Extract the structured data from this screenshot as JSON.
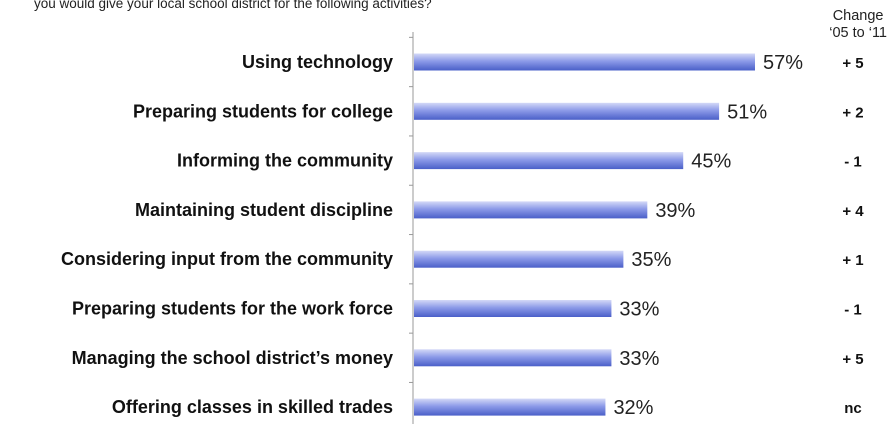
{
  "question_fragment": "you would give your local school district for the following activities?",
  "change_header": {
    "line1": "Change",
    "line2": "‘05 to ‘11"
  },
  "chart_data": {
    "type": "bar",
    "orientation": "horizontal",
    "categories": [
      "Using technology",
      "Preparing students for college",
      "Informing the community",
      "Maintaining student discipline",
      "Considering input from the community",
      "Preparing students for the work force",
      "Managing the school district’s money",
      "Offering classes in skilled trades"
    ],
    "values": [
      57,
      51,
      45,
      39,
      35,
      33,
      33,
      32
    ],
    "value_labels": [
      "57%",
      "51%",
      "45%",
      "39%",
      "35%",
      "33%",
      "33%",
      "32%"
    ],
    "changes": [
      "+ 5",
      "+ 2",
      "- 1",
      "+ 4",
      "+ 1",
      "- 1",
      "+ 5",
      "nc"
    ],
    "xlim": [
      0,
      70
    ],
    "grid": false,
    "colors": {
      "bar_top": "#d4d9f7",
      "bar_mid": "#8c9ae8",
      "bar_bottom": "#4a5fc8",
      "axis": "#999999"
    }
  }
}
